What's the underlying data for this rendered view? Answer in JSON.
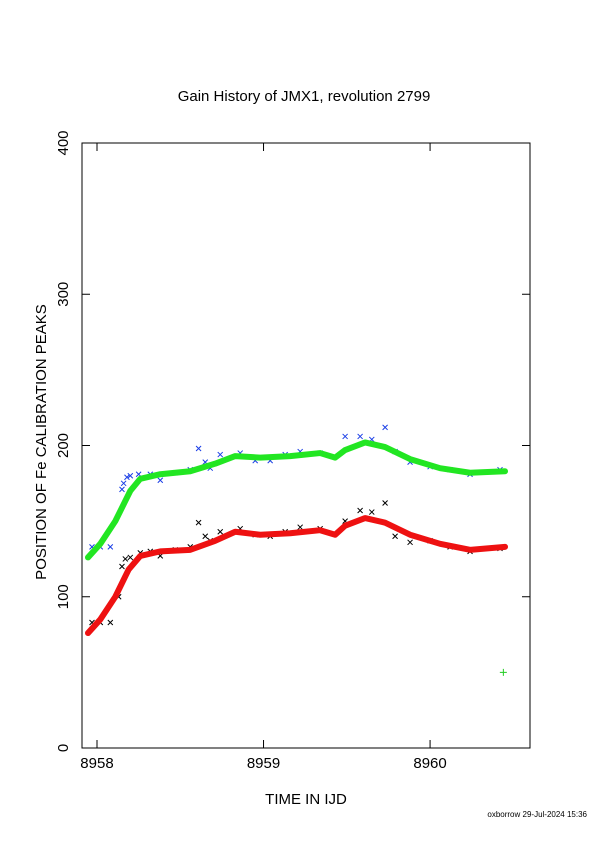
{
  "chart_data": {
    "type": "line",
    "title": "Gain History of JMX1, revolution 2799",
    "x_label": "TIME IN IJD",
    "y_label": "POSITION OF Fe CALIBRATION PEAKS",
    "footer": "oxborrow 29-Jul-2024 15:36",
    "xlim": [
      8957.91,
      8960.6
    ],
    "ylim": [
      0,
      400
    ],
    "xticks": [
      8958,
      8959,
      8960
    ],
    "yticks": [
      0,
      100,
      200,
      300,
      400
    ],
    "series": [
      {
        "style": "line",
        "color": "#22e622",
        "x": [
          8957.946,
          8958.02,
          8958.11,
          8958.2,
          8958.26,
          8958.38,
          8958.56,
          8958.71,
          8958.83,
          8958.98,
          8959.16,
          8959.34,
          8959.43,
          8959.49,
          8959.61,
          8959.73,
          8959.88,
          8960.06,
          8960.24,
          8960.45
        ],
        "values": [
          126,
          135,
          150,
          170,
          178,
          181,
          183,
          188,
          193,
          192,
          193,
          195,
          192,
          197,
          202,
          199,
          191,
          185,
          182,
          183
        ]
      },
      {
        "style": "line",
        "color": "#ee1111",
        "x": [
          8957.946,
          8958.02,
          8958.11,
          8958.19,
          8958.26,
          8958.38,
          8958.56,
          8958.71,
          8958.83,
          8958.98,
          8959.16,
          8959.34,
          8959.43,
          8959.49,
          8959.61,
          8959.73,
          8959.88,
          8960.06,
          8960.24,
          8960.45
        ],
        "values": [
          76,
          85,
          100,
          118,
          127,
          130,
          131,
          137,
          143,
          141,
          142,
          144,
          141,
          147,
          152,
          149,
          141,
          135,
          131,
          133
        ]
      },
      {
        "style": "x",
        "color": "#1a3ee6",
        "x": [
          8957.97,
          8958.02,
          8958.08,
          8958.15,
          8958.16,
          8958.18,
          8958.2,
          8958.25,
          8958.32,
          8958.38,
          8958.47,
          8958.56,
          8958.61,
          8958.65,
          8958.68,
          8958.74,
          8958.86,
          8958.95,
          8959.04,
          8959.13,
          8959.22,
          8959.34,
          8959.49,
          8959.58,
          8959.65,
          8959.73,
          8959.79,
          8959.88,
          8960.0,
          8960.12,
          8960.24,
          8960.42
        ],
        "values": [
          133,
          133,
          133,
          171,
          175,
          179,
          180,
          181,
          181,
          177,
          182,
          184,
          198,
          189,
          185,
          194,
          195,
          190,
          190,
          194,
          196,
          195,
          206,
          206,
          204,
          212,
          196,
          189,
          186,
          184,
          181,
          184
        ]
      },
      {
        "style": "x",
        "color": "#000000",
        "x": [
          8957.97,
          8958.02,
          8958.08,
          8958.13,
          8958.15,
          8958.17,
          8958.2,
          8958.26,
          8958.32,
          8958.38,
          8958.47,
          8958.56,
          8958.61,
          8958.65,
          8958.68,
          8958.74,
          8958.86,
          8958.95,
          8959.04,
          8959.13,
          8959.22,
          8959.34,
          8959.49,
          8959.58,
          8959.65,
          8959.73,
          8959.79,
          8959.88,
          8960.0,
          8960.12,
          8960.24,
          8960.42
        ],
        "values": [
          83,
          83,
          83,
          100,
          120,
          125,
          126,
          129,
          130,
          127,
          131,
          133,
          149,
          140,
          137,
          143,
          145,
          141,
          140,
          143,
          146,
          145,
          150,
          157,
          156,
          162,
          140,
          136,
          137,
          133,
          130,
          132
        ]
      },
      {
        "style": "plus",
        "color": "#22cc22",
        "x": [
          8960.44
        ],
        "values": [
          50
        ]
      }
    ]
  }
}
